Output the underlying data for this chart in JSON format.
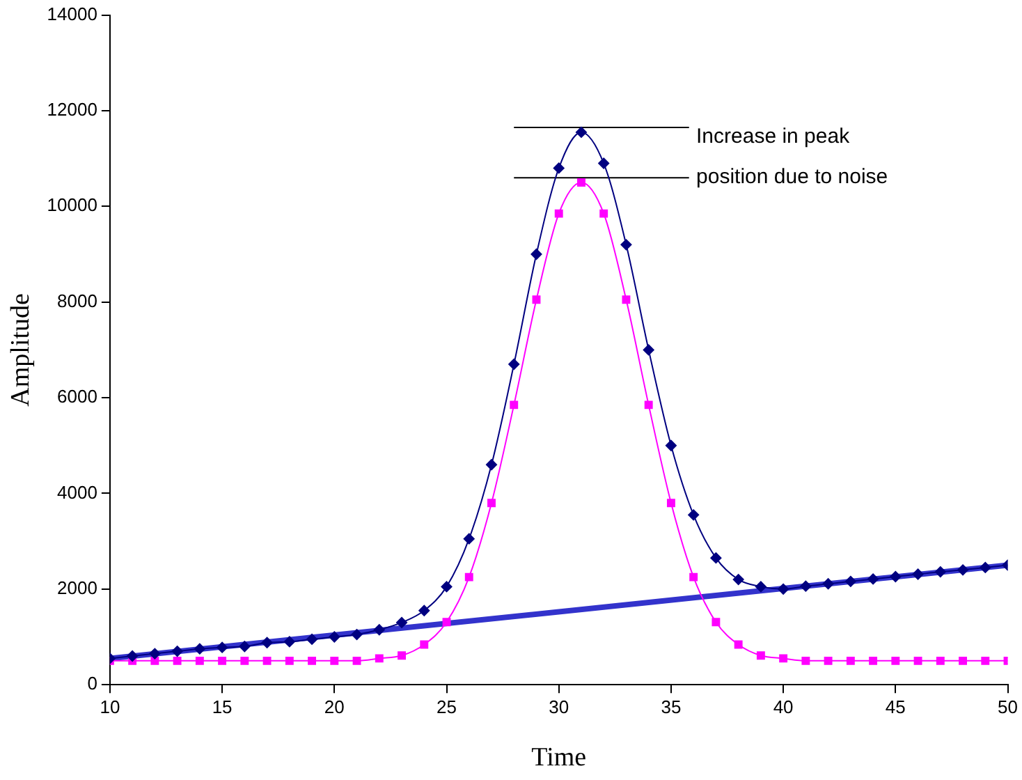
{
  "chart_data": {
    "type": "line",
    "xlabel": "Time",
    "ylabel": "Amplitude",
    "xlim": [
      10,
      50
    ],
    "xticks": [
      10,
      15,
      20,
      25,
      30,
      35,
      40,
      45,
      50
    ],
    "ylim": [
      0,
      14000
    ],
    "yticks": [
      0,
      2000,
      4000,
      6000,
      8000,
      10000,
      12000,
      14000
    ],
    "grid": false,
    "legend": false,
    "x": [
      10,
      11,
      12,
      13,
      14,
      15,
      16,
      17,
      18,
      19,
      20,
      21,
      22,
      23,
      24,
      25,
      26,
      27,
      28,
      29,
      30,
      31,
      32,
      33,
      34,
      35,
      36,
      37,
      38,
      39,
      40,
      41,
      42,
      43,
      44,
      45,
      46,
      47,
      48,
      49,
      50
    ],
    "series": [
      {
        "color": "#000080",
        "marker": "diamond",
        "values": [
          550,
          600,
          650,
          700,
          750,
          780,
          800,
          880,
          900,
          950,
          1000,
          1050,
          1150,
          1300,
          1550,
          2050,
          3050,
          4600,
          6700,
          9000,
          10800,
          11550,
          10900,
          9200,
          7000,
          5000,
          3550,
          2650,
          2200,
          2050,
          2000,
          2060,
          2110,
          2160,
          2210,
          2260,
          2310,
          2360,
          2400,
          2450,
          2500
        ]
      },
      {
        "color": "#ff00ff",
        "marker": "square",
        "values": [
          500,
          500,
          500,
          500,
          500,
          500,
          500,
          500,
          500,
          500,
          500,
          500,
          550,
          610,
          840,
          1310,
          2250,
          3800,
          5850,
          8050,
          9850,
          10500,
          9850,
          8050,
          5850,
          3800,
          2250,
          1310,
          840,
          610,
          550,
          500,
          500,
          500,
          500,
          500,
          500,
          500,
          500,
          500,
          500
        ]
      },
      {
        "color": "#3333cc",
        "marker": "none",
        "x": [
          10,
          50
        ],
        "values": [
          550,
          2500
        ]
      },
      {
        "color": "#000000",
        "marker": "none",
        "x": [
          28,
          35.8
        ],
        "values": [
          11650,
          11650
        ]
      },
      {
        "color": "#000000",
        "marker": "none",
        "x": [
          28,
          35.8
        ],
        "values": [
          10600,
          10600
        ]
      }
    ],
    "annotations": [
      "Increase in peak",
      "position due to noise"
    ]
  }
}
